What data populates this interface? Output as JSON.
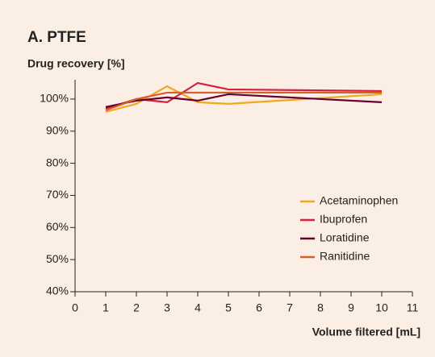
{
  "chart_data": {
    "type": "line",
    "title": "A. PTFE",
    "y_label": "Drug recovery [%]",
    "x_label": "Volume filtered [mL]",
    "x": [
      1,
      2,
      3,
      4,
      5,
      10
    ],
    "series": [
      {
        "name": "Acetaminophen",
        "color": "#f2a81d",
        "values": [
          96,
          98.5,
          104,
          99,
          98.5,
          101.5
        ]
      },
      {
        "name": "Ibuprofen",
        "color": "#d6203f",
        "values": [
          97,
          100,
          99,
          105,
          103,
          102.5
        ]
      },
      {
        "name": "Loratidine",
        "color": "#650030",
        "values": [
          97.5,
          99.5,
          100.5,
          99.5,
          101.5,
          99
        ]
      },
      {
        "name": "Ranitidine",
        "color": "#d5602a",
        "values": [
          96.5,
          100,
          102,
          102,
          102,
          102
        ]
      }
    ],
    "xlim": [
      0,
      11
    ],
    "xticks": [
      0,
      1,
      2,
      3,
      4,
      5,
      6,
      7,
      8,
      9,
      10,
      11
    ],
    "ylim": [
      40,
      106
    ],
    "yticks": [
      {
        "value": 40,
        "label": "40%"
      },
      {
        "value": 50,
        "label": "50%"
      },
      {
        "value": 60,
        "label": "60%"
      },
      {
        "value": 70,
        "label": "70%"
      },
      {
        "value": 80,
        "label": "80%"
      },
      {
        "value": 90,
        "label": "90%"
      },
      {
        "value": 100,
        "label": "100%"
      }
    ],
    "legend": "right"
  }
}
